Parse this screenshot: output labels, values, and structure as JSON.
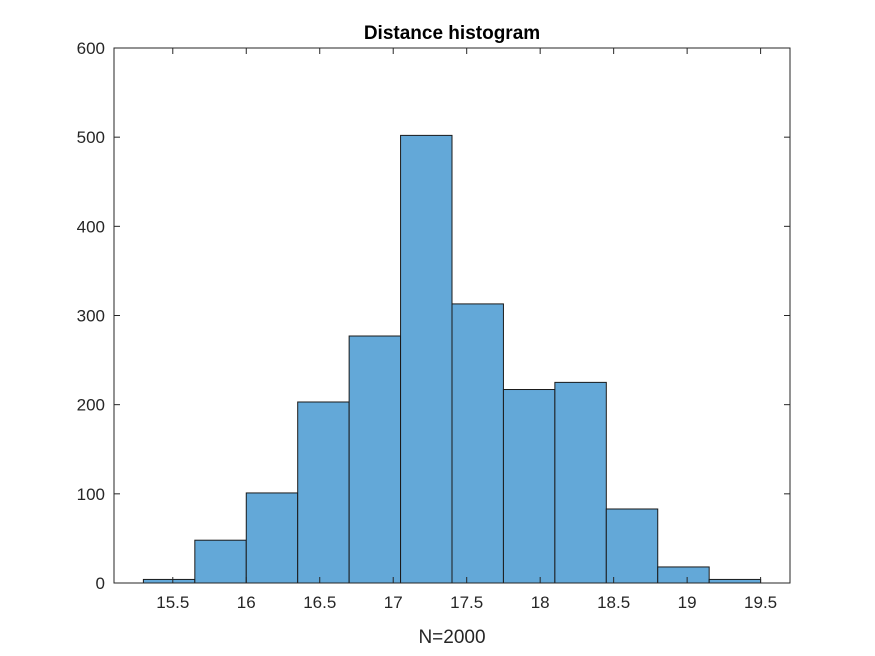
{
  "chart_data": {
    "type": "bar",
    "title": "Distance histogram",
    "xlabel": "N=2000",
    "ylabel": "",
    "bin_edges": [
      15.3,
      15.65,
      16.0,
      16.35,
      16.7,
      17.05,
      17.4,
      17.75,
      18.1,
      18.45,
      18.8,
      19.15,
      19.5
    ],
    "counts": [
      4,
      48,
      101,
      203,
      277,
      502,
      313,
      217,
      225,
      83,
      18,
      4
    ],
    "xlim": [
      15.1,
      19.7
    ],
    "ylim": [
      0,
      600
    ],
    "xticks": [
      15.5,
      16,
      16.5,
      17,
      17.5,
      18,
      18.5,
      19,
      19.5
    ],
    "xtick_labels": [
      "15.5",
      "16",
      "16.5",
      "17",
      "17.5",
      "18",
      "18.5",
      "19",
      "19.5"
    ],
    "yticks": [
      0,
      100,
      200,
      300,
      400,
      500,
      600
    ],
    "ytick_labels": [
      "0",
      "100",
      "200",
      "300",
      "400",
      "500",
      "600"
    ],
    "grid": false,
    "colors": {
      "bar_fill": "#63a8d8",
      "bar_edge": "#1a1a1a",
      "axis": "#262626"
    }
  }
}
